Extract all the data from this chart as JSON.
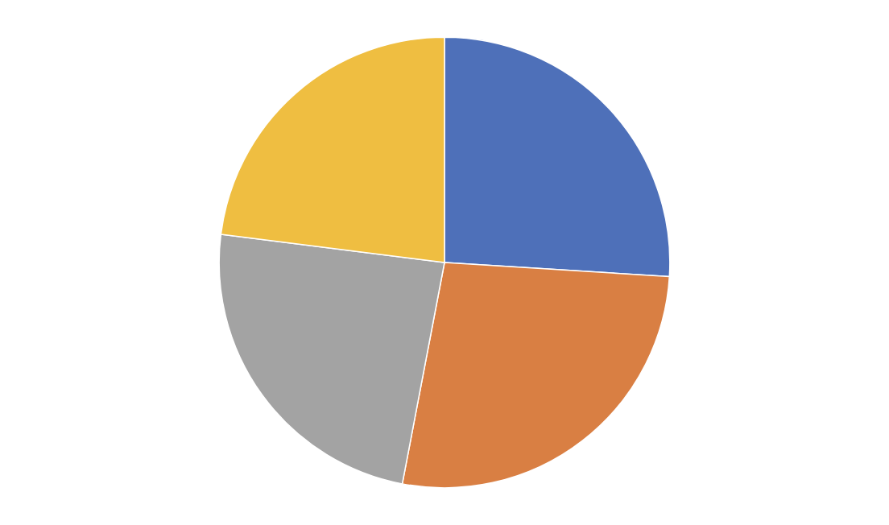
{
  "chart_data": {
    "type": "pie",
    "categories": [
      null,
      null,
      null,
      null
    ],
    "values": [
      26,
      27,
      24,
      23
    ],
    "colors": [
      "#4e70b9",
      "#d97f43",
      "#a3a3a3",
      "#efbe41"
    ]
  }
}
